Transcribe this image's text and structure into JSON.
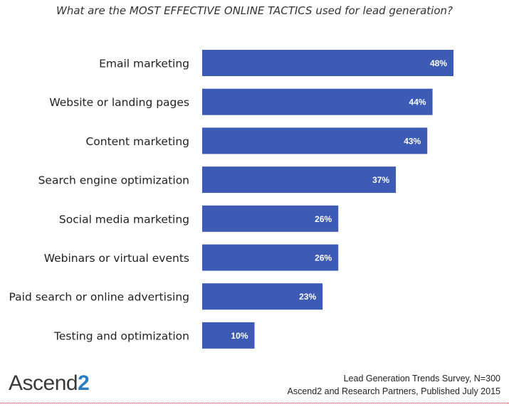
{
  "chart_data": {
    "type": "bar",
    "orientation": "horizontal",
    "title": "What are the MOST EFFECTIVE ONLINE TACTICS used for lead generation?",
    "categories": [
      "Email marketing",
      "Website or landing pages",
      "Content marketing",
      "Search engine optimization",
      "Social media marketing",
      "Webinars or virtual events",
      "Paid search or online advertising",
      "Testing and optimization"
    ],
    "values": [
      48,
      44,
      43,
      37,
      26,
      26,
      23,
      10
    ],
    "value_labels": [
      "48%",
      "44%",
      "43%",
      "37%",
      "26%",
      "26%",
      "23%",
      "10%"
    ],
    "unit": "%",
    "bar_color": "#3d5ab4",
    "label_color": "#ffffff",
    "grid": false,
    "xlim": [
      0,
      48
    ]
  },
  "footer": {
    "line1": "Lead Generation Trends Survey, N=300",
    "line2": "Ascend2 and Research Partners, Published July 2015"
  },
  "logo": {
    "word": "Ascend",
    "number": "2"
  }
}
